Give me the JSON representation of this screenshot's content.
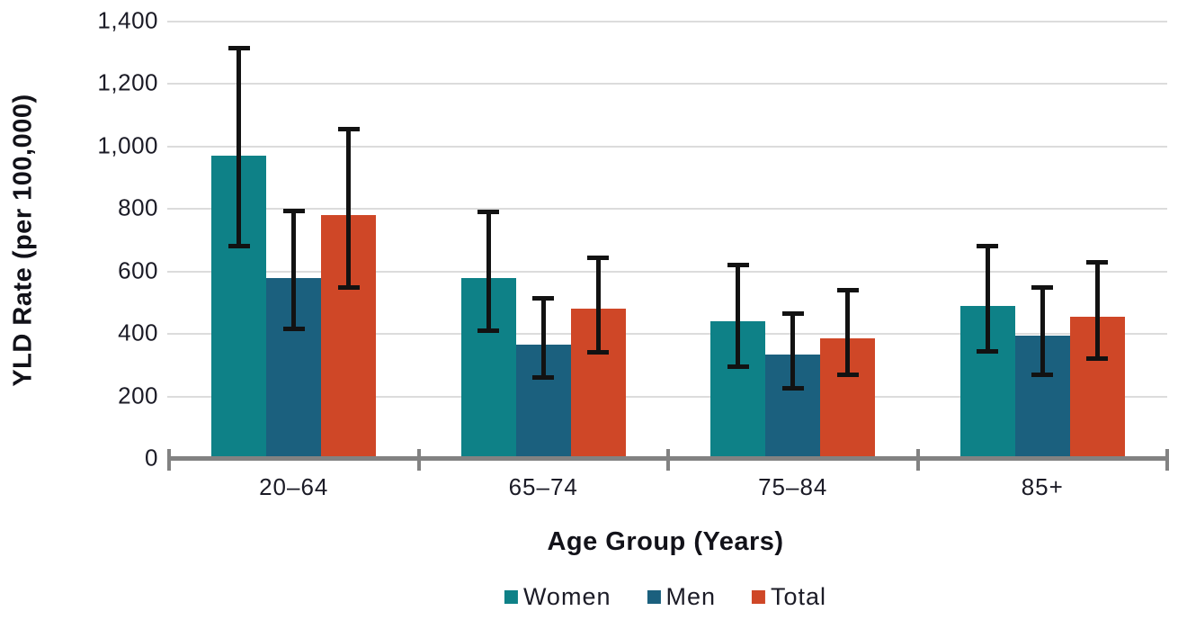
{
  "chart": {
    "y_axis_title": "YLD Rate (per 100,000)",
    "x_axis_title": "Age Group (Years)"
  },
  "chart_data": {
    "type": "bar",
    "title": "",
    "xlabel": "Age Group (Years)",
    "ylabel": "YLD Rate (per 100,000)",
    "categories": [
      "20–64",
      "65–74",
      "75–84",
      "85+"
    ],
    "series": [
      {
        "name": "Women",
        "color": "#0E8187",
        "values": [
          970,
          580,
          440,
          490
        ],
        "ci_low": [
          680,
          410,
          295,
          345
        ],
        "ci_high": [
          1315,
          790,
          620,
          680
        ]
      },
      {
        "name": "Men",
        "color": "#1B607E",
        "values": [
          580,
          365,
          333,
          395
        ],
        "ci_low": [
          415,
          260,
          225,
          270
        ],
        "ci_high": [
          795,
          515,
          465,
          550
        ]
      },
      {
        "name": "Total",
        "color": "#CF4727",
        "values": [
          780,
          480,
          385,
          455
        ],
        "ci_low": [
          550,
          340,
          270,
          320
        ],
        "ci_high": [
          1055,
          645,
          540,
          630
        ]
      }
    ],
    "ylim": [
      0,
      1400
    ],
    "ytick_values": [
      0,
      200,
      400,
      600,
      800,
      1000,
      1200,
      1400
    ],
    "ytick_labels": [
      "0",
      "200",
      "400",
      "600",
      "800",
      "1,000",
      "1,200",
      "1,400"
    ],
    "grid": "horizontal-only",
    "legend_position": "bottom-center",
    "error_bars": true
  },
  "colors": {
    "background": "#FFFFFF",
    "gridline": "#DCDCDC",
    "axis": "#828282",
    "text": "#1B1B26",
    "error_bar": "#121212",
    "women": "#0E8187",
    "men": "#1B607E",
    "total": "#CF4727"
  }
}
